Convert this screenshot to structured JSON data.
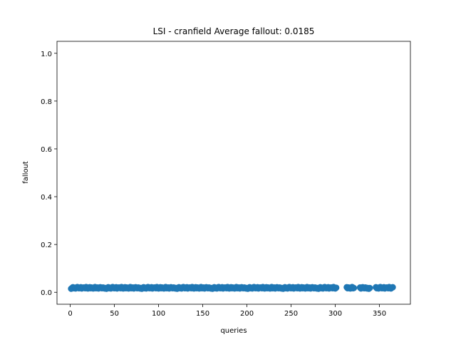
{
  "chart_data": {
    "type": "scatter",
    "title": "LSI - cranfield  Average fallout: 0.0185",
    "xlabel": "queries",
    "ylabel": "fallout",
    "xlim": [
      -15,
      385
    ],
    "ylim": [
      -0.05,
      1.05
    ],
    "xticks": [
      0,
      50,
      100,
      150,
      200,
      250,
      300,
      350
    ],
    "yticks": [
      0.0,
      0.2,
      0.4,
      0.6,
      0.8,
      1.0
    ],
    "ytick_labels": [
      "0.0",
      "0.2",
      "0.4",
      "0.6",
      "0.8",
      "1.0"
    ],
    "grid": false,
    "marker_color": "#1f77b4",
    "points": {
      "x_start": 1,
      "x_end": 365,
      "gaps": [
        [
          302,
          312
        ],
        [
          322,
          327
        ],
        [
          340,
          345
        ]
      ],
      "y_values": [
        0.015,
        0.018,
        0.021,
        0.017,
        0.019,
        0.016,
        0.02,
        0.022,
        0.018,
        0.017,
        0.019,
        0.021,
        0.016,
        0.018,
        0.02,
        0.019,
        0.017,
        0.022,
        0.018,
        0.016,
        0.019,
        0.021,
        0.017,
        0.02,
        0.018,
        0.016,
        0.019,
        0.022,
        0.017,
        0.018,
        0.02,
        0.016,
        0.019,
        0.021,
        0.018,
        0.017,
        0.02,
        0.019,
        0.016,
        0.018
      ],
      "marker_radius": 4.5
    }
  }
}
